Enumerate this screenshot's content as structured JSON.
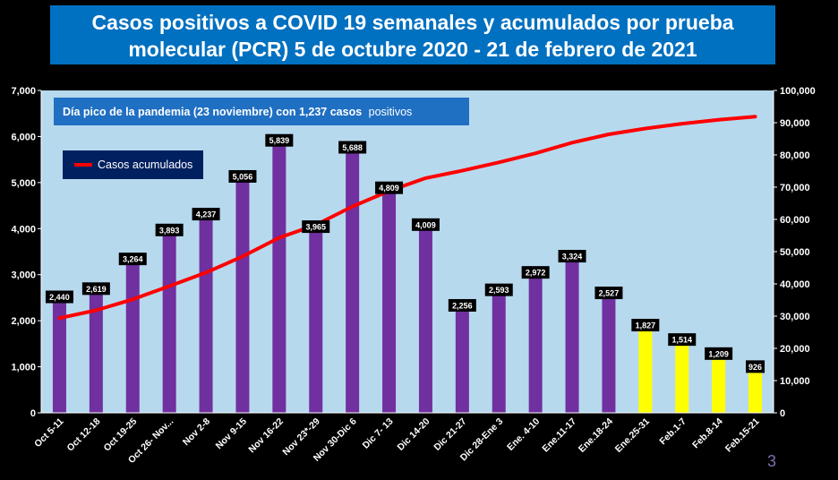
{
  "title": {
    "line1": "Casos positivos a COVID 19 semanales y acumulados por prueba",
    "line2": "molecular (PCR) 5 de octubre 2020 - 21 de febrero de 2021"
  },
  "annotation": {
    "text_bold": "Día pico de la pandemia (23 noviembre) con  1,237  casos",
    "text_normal": "positivos"
  },
  "legend": {
    "label": "Casos acumulados"
  },
  "page_number": "3",
  "colors": {
    "background": "#000000",
    "plot_area": "#B7D9EE",
    "title_box": "#0070C0",
    "annotation_box": "#1F6FC2",
    "legend_box": "#002060",
    "bar_main": "#7030A0",
    "bar_recent": "#FFFF00",
    "line": "#FF0000"
  },
  "chart_data": {
    "type": "bar",
    "categories": [
      "Oct 5-11",
      "Oct 12-18",
      "Oct 19-25",
      "Oct 26- Nov...",
      "Nov 2-8",
      "Nov 9-15",
      "Nov 16-22",
      "Nov 23*-29",
      "Nov 30-Dic 6",
      "Dic 7- 13",
      "Dic 14-20",
      "Dic 21-27",
      "Dic 28-Ene 3",
      "Ene. 4-10",
      "Ene.11-17",
      "Ene.18-24",
      "Ene.25-31",
      "Feb.1-7",
      "Feb.8-14",
      "Feb.15-21"
    ],
    "values": [
      2440,
      2619,
      3264,
      3893,
      4237,
      5056,
      5839,
      3965,
      5688,
      4809,
      4009,
      2256,
      2593,
      2972,
      3324,
      2527,
      1827,
      1514,
      1209,
      926
    ],
    "value_labels": [
      "2,440",
      "2,619",
      "3,264",
      "3,893",
      "4,237",
      "5,056",
      "5,839",
      "3,965",
      "5,688",
      "4,809",
      "4,009",
      "2,256",
      "2,593",
      "2,972",
      "3,324",
      "2,527",
      "1,827",
      "1,514",
      "1,209",
      "926"
    ],
    "bar_colors": [
      "#7030A0",
      "#7030A0",
      "#7030A0",
      "#7030A0",
      "#7030A0",
      "#7030A0",
      "#7030A0",
      "#7030A0",
      "#7030A0",
      "#7030A0",
      "#7030A0",
      "#7030A0",
      "#7030A0",
      "#7030A0",
      "#7030A0",
      "#7030A0",
      "#FFFF00",
      "#FFFF00",
      "#FFFF00",
      "#FFFF00"
    ],
    "line_series": {
      "name": "Casos acumulados",
      "axis": "secondary",
      "values": [
        29400,
        31800,
        35200,
        39300,
        43500,
        48500,
        54300,
        58300,
        64000,
        68800,
        72800,
        75100,
        77700,
        80500,
        83800,
        86400,
        88200,
        89700,
        90900,
        91900
      ]
    },
    "y_axis": {
      "ylim": [
        0,
        7000
      ],
      "ticks": [
        0,
        1000,
        2000,
        3000,
        4000,
        5000,
        6000,
        7000
      ],
      "tick_labels": [
        "0",
        "1,000",
        "2,000",
        "3,000",
        "4,000",
        "5,000",
        "6,000",
        "7,000"
      ]
    },
    "y2_axis": {
      "ylim": [
        0,
        100000
      ],
      "ticks": [
        0,
        10000,
        20000,
        30000,
        40000,
        50000,
        60000,
        70000,
        80000,
        90000,
        100000
      ],
      "tick_labels": [
        "0",
        "10,000",
        "20,000",
        "30,000",
        "40,000",
        "50,000",
        "60,000",
        "70,000",
        "80,000",
        "90,000",
        "100,000"
      ]
    },
    "grid": false,
    "legend_position": "top-left"
  }
}
